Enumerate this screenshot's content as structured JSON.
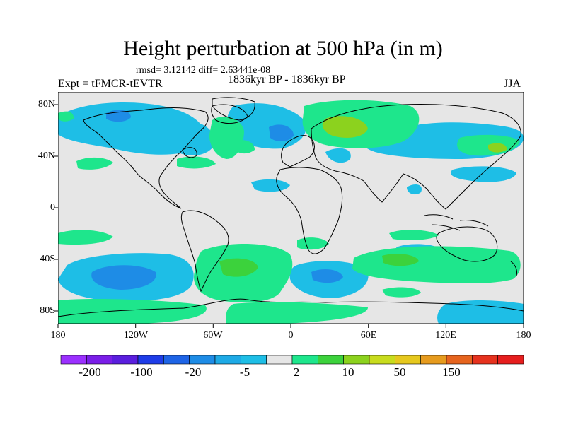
{
  "title": "Height perturbation at 500 hPa (in m)",
  "stats": "rmsd= 3.12142 diff= 2.63441e-08",
  "experiment": "Expt = tFMCR-tEVTR",
  "period": "1836kyr BP - 1836kyr BP",
  "season": "JJA",
  "lat_labels": [
    "80N",
    "40N",
    "0",
    "40S",
    "80S"
  ],
  "lon_labels": [
    "180",
    "120W",
    "60W",
    "0",
    "60E",
    "120E",
    "180"
  ],
  "colorbar": {
    "colors": [
      "#9b30ff",
      "#7a1ee8",
      "#5a1ede",
      "#1e3ce8",
      "#1e64e6",
      "#1e8ce6",
      "#1eaae6",
      "#1ebee6",
      "#e6e6e6",
      "#1ee68c",
      "#3cd23c",
      "#8cd21e",
      "#c8dc1e",
      "#e6c81e",
      "#e69b1e",
      "#e6641e",
      "#e6321e",
      "#e61e1e"
    ],
    "labels": [
      "-200",
      "-100",
      "-20",
      "-5",
      "2",
      "10",
      "50",
      "150"
    ]
  },
  "colors": {
    "background": "#e6e6e6",
    "coast": "#000000"
  }
}
